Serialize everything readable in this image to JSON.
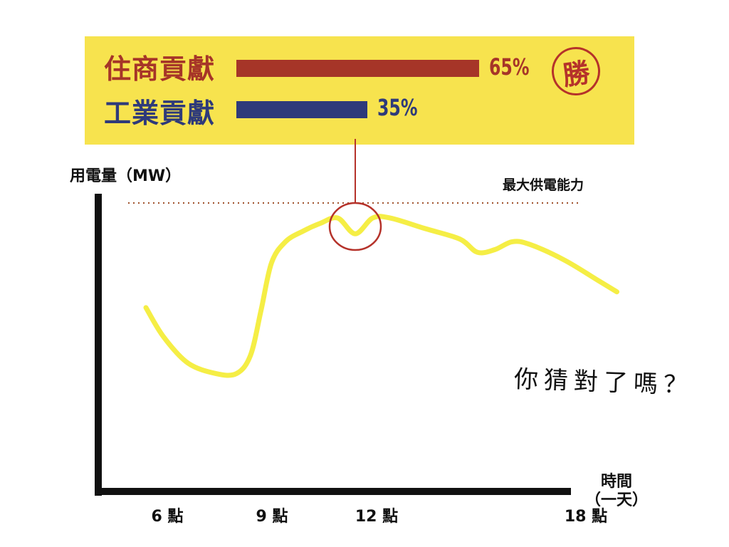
{
  "colors": {
    "panel": "#f7e34e",
    "commercial": "#a63528",
    "industrial": "#2e3a7a",
    "curve": "#f5ee45",
    "callout": "#b5322a",
    "axis": "#111111",
    "capacity_line": "#a0522d"
  },
  "legend": {
    "stamp": "勝",
    "items": [
      {
        "label": "住商貢獻",
        "share": 65,
        "percent_text": "65%",
        "color_key": "commercial"
      },
      {
        "label": "工業貢獻",
        "share": 35,
        "percent_text": "35%",
        "color_key": "industrial"
      }
    ]
  },
  "chart_data": {
    "type": "line",
    "ylabel": "用電量（MW）",
    "xlabel_line1": "時間",
    "xlabel_line2": "（一天）",
    "x_ticks": [
      {
        "value": 6,
        "label": "6 點"
      },
      {
        "value": 9,
        "label": "9 點"
      },
      {
        "value": 12,
        "label": "12 點"
      },
      {
        "value": 18,
        "label": "18 點"
      }
    ],
    "reference_line": {
      "label": "最大供電能力",
      "style": "dotted"
    },
    "highlight": {
      "at_hour": 12,
      "style": "circle"
    },
    "series": [
      {
        "values": [
          {
            "x": 6,
            "y": 63
          },
          {
            "x": 6.5,
            "y": 52
          },
          {
            "x": 7.2,
            "y": 42
          },
          {
            "x": 8,
            "y": 38
          },
          {
            "x": 8.6,
            "y": 38
          },
          {
            "x": 9,
            "y": 45
          },
          {
            "x": 9.3,
            "y": 62
          },
          {
            "x": 9.6,
            "y": 80
          },
          {
            "x": 10,
            "y": 88
          },
          {
            "x": 10.5,
            "y": 92
          },
          {
            "x": 11,
            "y": 95
          },
          {
            "x": 11.5,
            "y": 97
          },
          {
            "x": 12,
            "y": 91
          },
          {
            "x": 12.5,
            "y": 97
          },
          {
            "x": 13,
            "y": 97
          },
          {
            "x": 14,
            "y": 93
          },
          {
            "x": 15,
            "y": 89
          },
          {
            "x": 15.5,
            "y": 84
          },
          {
            "x": 16,
            "y": 85
          },
          {
            "x": 16.5,
            "y": 88
          },
          {
            "x": 17,
            "y": 87
          },
          {
            "x": 18,
            "y": 81
          },
          {
            "x": 19,
            "y": 73
          },
          {
            "x": 19.5,
            "y": 69
          }
        ]
      }
    ]
  },
  "question": "你猜對了嗎？"
}
